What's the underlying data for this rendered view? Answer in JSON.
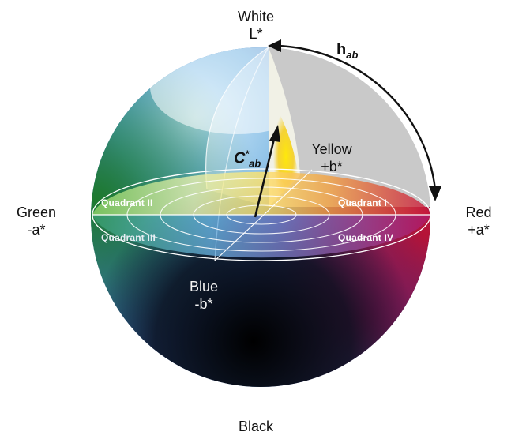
{
  "axes": {
    "top": {
      "line1": "White",
      "line2": "L*"
    },
    "bottom": "Black",
    "left": {
      "line1": "Green",
      "line2": "-a*"
    },
    "right": {
      "line1": "Red",
      "line2": "+a*"
    },
    "yellow": {
      "line1": "Yellow",
      "line2": "+b*"
    },
    "blue": {
      "line1": "Blue",
      "line2": "-b*"
    }
  },
  "hue_angle": {
    "base": "h",
    "sub": "ab"
  },
  "chroma": {
    "base": "C",
    "sup": "*",
    "sub": "ab"
  },
  "quadrants": {
    "q1": "Quadrant I",
    "q2": "Quadrant II",
    "q3": "Quadrant III",
    "q4": "Quadrant IV"
  },
  "colors": {
    "red": "#c41230",
    "magenta": "#a0195a",
    "yellow": "#f2d200",
    "green": "#2a8a3a",
    "blue": "#2f6fc4",
    "cyan": "#7fc4ec",
    "cutaway": "#c9c9c9"
  },
  "icons": {
    "hue_arrow": "curved-arrow-icon",
    "chroma_arrow": "arrow-icon"
  }
}
